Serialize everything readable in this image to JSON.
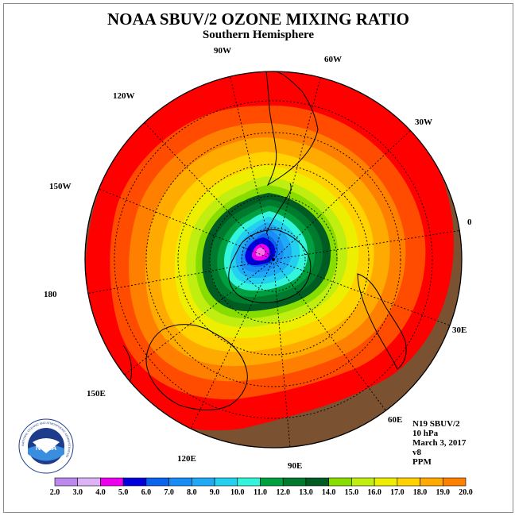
{
  "title": "NOAA SBUV/2 OZONE MIXING RATIO",
  "subtitle": "Southern Hemisphere",
  "longitude_labels": [
    "90W",
    "60W",
    "30W",
    "0",
    "30E",
    "60E",
    "90E",
    "120E",
    "150E",
    "180",
    "150W",
    "120W"
  ],
  "info": {
    "instrument": "N19 SBUV/2",
    "level": "10 hPa",
    "date": "March 3, 2017",
    "version": "v8",
    "units": "PPM"
  },
  "colorbar": {
    "ticks": [
      "2.0",
      "3.0",
      "4.0",
      "5.0",
      "6.0",
      "7.0",
      "8.0",
      "9.0",
      "10.0",
      "11.0",
      "12.0",
      "13.0",
      "14.0",
      "15.0",
      "16.0",
      "17.0",
      "18.0",
      "19.0",
      "20.0"
    ],
    "colors": [
      "#bb88ee",
      "#dcb4f5",
      "#ee00ee",
      "#0000dd",
      "#0a64ee",
      "#1a8cf5",
      "#20aaf5",
      "#24d0f0",
      "#32f5dc",
      "#00a040",
      "#007a2c",
      "#005c22",
      "#88dd00",
      "#c0ee10",
      "#eeee00",
      "#ffd200",
      "#ffaa00",
      "#ff8000",
      "#ff4c00",
      "#ff0000",
      "#7a5232"
    ]
  },
  "logo": {
    "text": "NOAA",
    "ring_text": "NATIONAL OCEANIC AND ATMOSPHERIC ADMINISTRATION",
    "dept_text": "U.S. DEPARTMENT OF COMMERCE"
  }
}
